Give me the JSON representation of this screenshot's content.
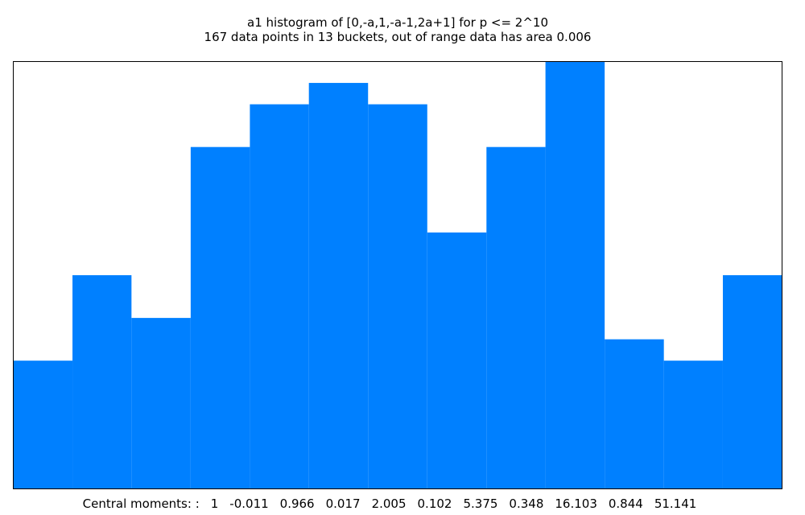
{
  "chart_data": {
    "type": "histogram",
    "title": "a1 histogram of [0,-a,1,-a-1,2a+1] for p <= 2^10",
    "subtitle": "167 data points in 13 buckets, out of range data has area 0.006",
    "bins": [
      -2,
      -1.692,
      -1.385,
      -1.077,
      -0.769,
      -0.462,
      -0.154,
      0.154,
      0.462,
      0.769,
      1.077,
      1.385,
      1.692,
      2
    ],
    "values": [
      6,
      10,
      8,
      16,
      18,
      19,
      18,
      12,
      16,
      20,
      7,
      6,
      10
    ],
    "color": "#0080ff",
    "xlim": [
      -2,
      2
    ],
    "ylim": [
      0,
      20
    ],
    "moments_label": "Central moments: :",
    "moments": [
      1,
      -0.011,
      0.966,
      0.017,
      2.005,
      0.102,
      5.375,
      0.348,
      16.103,
      0.844,
      51.141
    ]
  }
}
